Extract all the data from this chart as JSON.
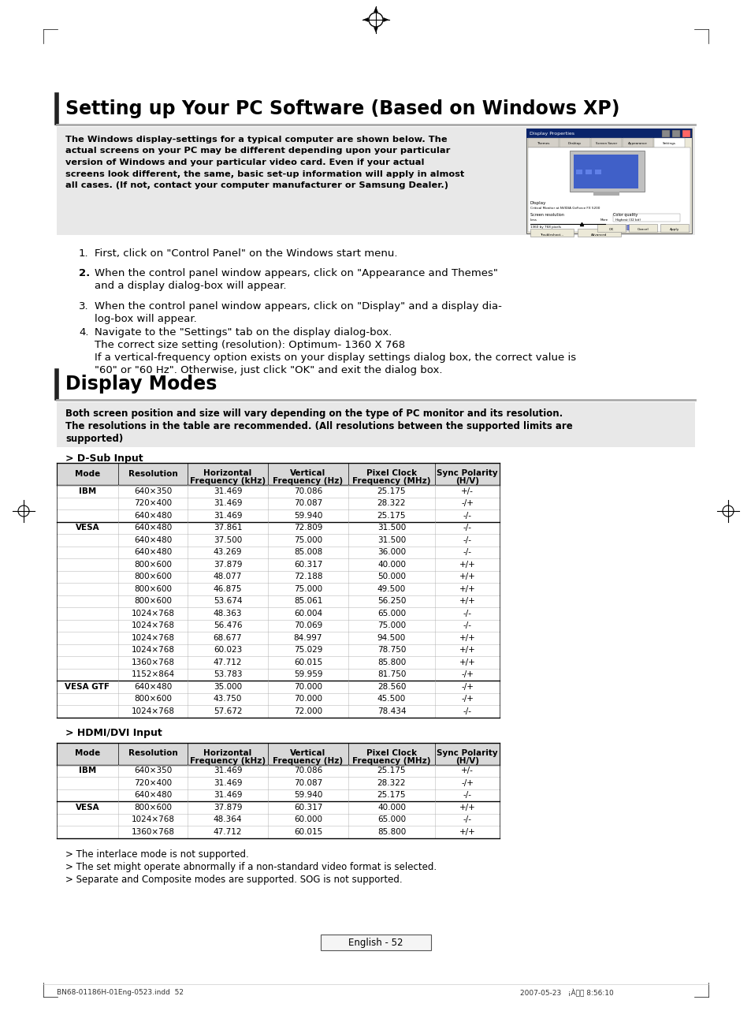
{
  "title": "Setting up Your PC Software (Based on Windows XP)",
  "section2_title": "Display Modes",
  "bg_color": "#ffffff",
  "intro_lines": [
    "The Windows display-settings for a typical computer are shown below. The",
    "actual screens on your PC may be different depending upon your particular",
    "version of Windows and your particular video card. Even if your actual",
    "screens look different, the same, basic set-up information will apply in almost",
    "all cases. (If not, contact your computer manufacturer or Samsung Dealer.)"
  ],
  "step1": "First, click on \"Control Panel\" on the Windows start menu.",
  "step2a": "When the control panel window appears, click on \"Appearance and Themes\"",
  "step2b": "and a display dialog-box will appear.",
  "step3a": "When the control panel window appears, click on \"Display\" and a display dia-",
  "step3b": "log-box will appear.",
  "step4a": "Navigate to the \"Settings\" tab on the display dialog-box.",
  "step4b": "The correct size setting (resolution): Optimum- 1360 X 768",
  "step4c": "If a vertical-frequency option exists on your display settings dialog box, the correct value is",
  "step4d": "\"60\" or \"60 Hz\". Otherwise, just click \"OK\" and exit the dialog box.",
  "display_modes_intro_lines": [
    "Both screen position and size will vary depending on the type of PC monitor and its resolution.",
    "The resolutions in the table are recommended. (All resolutions between the supported limits are",
    "supported)"
  ],
  "dsub_label": "> D-Sub Input",
  "hdmi_label": "> HDMI/DVI Input",
  "table_header": [
    "Mode",
    "Resolution",
    "Horizontal\nFrequency (kHz)",
    "Vertical\nFrequency (Hz)",
    "Pixel Clock\nFrequency (MHz)",
    "Sync Polarity\n(H/V)"
  ],
  "dsub_rows": [
    [
      "IBM",
      "640×350",
      "31.469",
      "70.086",
      "25.175",
      "+/-"
    ],
    [
      "",
      "720×400",
      "31.469",
      "70.087",
      "28.322",
      "-/+"
    ],
    [
      "",
      "640×480",
      "31.469",
      "59.940",
      "25.175",
      "-/-"
    ],
    [
      "VESA",
      "640×480",
      "37.861",
      "72.809",
      "31.500",
      "-/-"
    ],
    [
      "",
      "640×480",
      "37.500",
      "75.000",
      "31.500",
      "-/-"
    ],
    [
      "",
      "640×480",
      "43.269",
      "85.008",
      "36.000",
      "-/-"
    ],
    [
      "",
      "800×600",
      "37.879",
      "60.317",
      "40.000",
      "+/+"
    ],
    [
      "",
      "800×600",
      "48.077",
      "72.188",
      "50.000",
      "+/+"
    ],
    [
      "",
      "800×600",
      "46.875",
      "75.000",
      "49.500",
      "+/+"
    ],
    [
      "",
      "800×600",
      "53.674",
      "85.061",
      "56.250",
      "+/+"
    ],
    [
      "",
      "1024×768",
      "48.363",
      "60.004",
      "65.000",
      "-/-"
    ],
    [
      "",
      "1024×768",
      "56.476",
      "70.069",
      "75.000",
      "-/-"
    ],
    [
      "",
      "1024×768",
      "68.677",
      "84.997",
      "94.500",
      "+/+"
    ],
    [
      "",
      "1024×768",
      "60.023",
      "75.029",
      "78.750",
      "+/+"
    ],
    [
      "",
      "1360×768",
      "47.712",
      "60.015",
      "85.800",
      "+/+"
    ],
    [
      "",
      "1152×864",
      "53.783",
      "59.959",
      "81.750",
      "-/+"
    ],
    [
      "VESA GTF",
      "640×480",
      "35.000",
      "70.000",
      "28.560",
      "-/+"
    ],
    [
      "",
      "800×600",
      "43.750",
      "70.000",
      "45.500",
      "-/+"
    ],
    [
      "",
      "1024×768",
      "57.672",
      "72.000",
      "78.434",
      "-/-"
    ]
  ],
  "hdmi_rows": [
    [
      "IBM",
      "640×350",
      "31.469",
      "70.086",
      "25.175",
      "+/-"
    ],
    [
      "",
      "720×400",
      "31.469",
      "70.087",
      "28.322",
      "-/+"
    ],
    [
      "",
      "640×480",
      "31.469",
      "59.940",
      "25.175",
      "-/-"
    ],
    [
      "VESA",
      "800×600",
      "37.879",
      "60.317",
      "40.000",
      "+/+"
    ],
    [
      "",
      "1024×768",
      "48.364",
      "60.000",
      "65.000",
      "-/-"
    ],
    [
      "",
      "1360×768",
      "47.712",
      "60.015",
      "85.800",
      "+/+"
    ]
  ],
  "footnotes": [
    "> The interlace mode is not supported.",
    "> The set might operate abnormally if a non-standard video format is selected.",
    "> Separate and Composite modes are supported. SOG is not supported."
  ],
  "page_label": "English - 52",
  "footer_left": "BN68-01186H-01Eng-0523.indd  52",
  "footer_right": "2007-05-23   ¡À오전 8:56:10"
}
